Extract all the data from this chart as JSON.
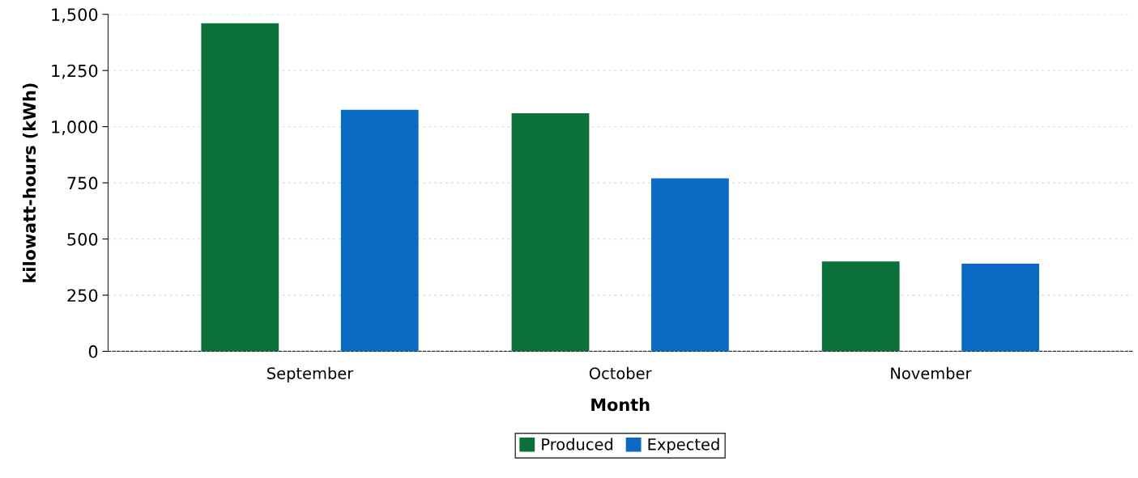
{
  "chart_data": {
    "type": "bar",
    "xlabel": "Month",
    "ylabel": "kilowatt-hours (kWh)",
    "categories": [
      "September",
      "October",
      "November"
    ],
    "series": [
      {
        "name": "Produced",
        "color": "#0b7039",
        "values": [
          1460,
          1060,
          400
        ]
      },
      {
        "name": "Expected",
        "color": "#0a6ac4",
        "values": [
          1075,
          770,
          390
        ]
      }
    ],
    "ylim": [
      0,
      1500
    ],
    "yticks": [
      {
        "value": 0,
        "label": "0"
      },
      {
        "value": 250,
        "label": "250"
      },
      {
        "value": 500,
        "label": "500"
      },
      {
        "value": 750,
        "label": "750"
      },
      {
        "value": 1000,
        "label": "1,000"
      },
      {
        "value": 1250,
        "label": "1,250"
      },
      {
        "value": 1500,
        "label": "1,500"
      }
    ],
    "grid": "y",
    "legend": "bottom"
  }
}
